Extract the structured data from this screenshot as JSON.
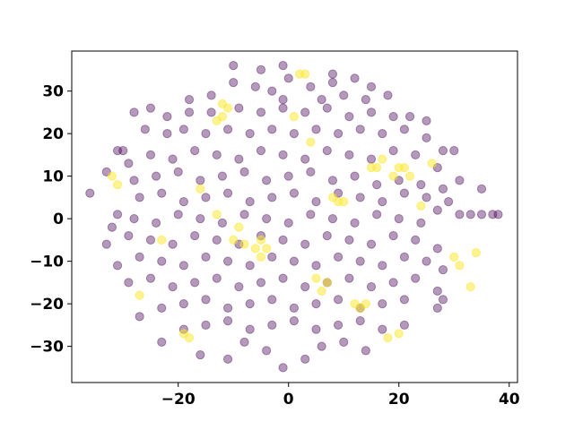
{
  "chart_data": {
    "type": "scatter",
    "title": "",
    "xlabel": "",
    "ylabel": "",
    "xlim": [
      -39.3,
      41.5
    ],
    "ylim": [
      -38.5,
      39.4
    ],
    "xticks": [
      -20,
      0,
      20,
      40
    ],
    "yticks": [
      -30,
      -20,
      -10,
      0,
      10,
      20,
      30
    ],
    "grid": false,
    "colors": {
      "class_0": "#440154",
      "class_1": "#fde725"
    },
    "series": [
      {
        "color": "#440154",
        "points": [
          [
            -10,
            32
          ],
          [
            -6,
            31
          ],
          [
            -3,
            30
          ],
          [
            0,
            33
          ],
          [
            4,
            31
          ],
          [
            8,
            32
          ],
          [
            12,
            33
          ],
          [
            15,
            31
          ],
          [
            18,
            29
          ],
          [
            -14,
            29
          ],
          [
            -18,
            28
          ],
          [
            -1,
            28
          ],
          [
            6,
            28
          ],
          [
            10,
            29
          ],
          [
            14,
            28
          ],
          [
            -1,
            36
          ],
          [
            -10,
            36
          ],
          [
            -5,
            35
          ],
          [
            8,
            34
          ],
          [
            -28,
            25
          ],
          [
            -25,
            26
          ],
          [
            -22,
            24
          ],
          [
            -18,
            25
          ],
          [
            -14,
            25
          ],
          [
            -9,
            26
          ],
          [
            -5,
            25
          ],
          [
            -1,
            26
          ],
          [
            3,
            25
          ],
          [
            7,
            26
          ],
          [
            11,
            24
          ],
          [
            15,
            25
          ],
          [
            19,
            24
          ],
          [
            22,
            24
          ],
          [
            25,
            23
          ],
          [
            -30,
            16
          ],
          [
            -26,
            21
          ],
          [
            -22,
            20
          ],
          [
            -19,
            21
          ],
          [
            -15,
            20
          ],
          [
            -11,
            21
          ],
          [
            -7,
            20
          ],
          [
            -3,
            21
          ],
          [
            1,
            20
          ],
          [
            5,
            21
          ],
          [
            9,
            20
          ],
          [
            13,
            21
          ],
          [
            17,
            20
          ],
          [
            21,
            21
          ],
          [
            25,
            19
          ],
          [
            28,
            16
          ],
          [
            -31,
            16
          ],
          [
            -29,
            13
          ],
          [
            -25,
            15
          ],
          [
            -21,
            14
          ],
          [
            -17,
            16
          ],
          [
            -13,
            15
          ],
          [
            -9,
            14
          ],
          [
            -5,
            16
          ],
          [
            -1,
            15
          ],
          [
            3,
            14
          ],
          [
            7,
            16
          ],
          [
            11,
            15
          ],
          [
            15,
            14
          ],
          [
            19,
            16
          ],
          [
            23,
            15
          ],
          [
            27,
            12
          ],
          [
            30,
            16
          ],
          [
            -33,
            11
          ],
          [
            -28,
            9
          ],
          [
            -24,
            10
          ],
          [
            -20,
            11
          ],
          [
            -16,
            9
          ],
          [
            -12,
            10
          ],
          [
            -8,
            11
          ],
          [
            -4,
            9
          ],
          [
            0,
            10
          ],
          [
            4,
            11
          ],
          [
            8,
            9
          ],
          [
            12,
            10
          ],
          [
            16,
            8
          ],
          [
            20,
            9
          ],
          [
            24,
            8
          ],
          [
            28,
            7
          ],
          [
            31,
            9
          ],
          [
            -36,
            6
          ],
          [
            -31,
            1
          ],
          [
            -27,
            5
          ],
          [
            -23,
            6
          ],
          [
            -19,
            4
          ],
          [
            -15,
            5
          ],
          [
            -11,
            6
          ],
          [
            -7,
            4
          ],
          [
            -3,
            5
          ],
          [
            1,
            6
          ],
          [
            5,
            4
          ],
          [
            9,
            6
          ],
          [
            13,
            5
          ],
          [
            17,
            4
          ],
          [
            21,
            6
          ],
          [
            25,
            5
          ],
          [
            29,
            4
          ],
          [
            35,
            7
          ],
          [
            -32,
            -2
          ],
          [
            -28,
            0
          ],
          [
            -24,
            -1
          ],
          [
            -20,
            1
          ],
          [
            -16,
            0
          ],
          [
            -12,
            -1
          ],
          [
            -8,
            1
          ],
          [
            -4,
            0
          ],
          [
            0,
            -1
          ],
          [
            4,
            1
          ],
          [
            8,
            0
          ],
          [
            12,
            -1
          ],
          [
            16,
            1
          ],
          [
            20,
            0
          ],
          [
            24,
            -1
          ],
          [
            27,
            2
          ],
          [
            31,
            1
          ],
          [
            33,
            1
          ],
          [
            35,
            1
          ],
          [
            37,
            1
          ],
          [
            38,
            1
          ],
          [
            -33,
            -6
          ],
          [
            -29,
            -4
          ],
          [
            -25,
            -5
          ],
          [
            -21,
            -6
          ],
          [
            -17,
            -4
          ],
          [
            -13,
            -5
          ],
          [
            -9,
            -6
          ],
          [
            -5,
            -4
          ],
          [
            -1,
            -5
          ],
          [
            3,
            -6
          ],
          [
            7,
            -4
          ],
          [
            11,
            -5
          ],
          [
            15,
            -6
          ],
          [
            19,
            -4
          ],
          [
            23,
            -5
          ],
          [
            27,
            -7
          ],
          [
            -31,
            -11
          ],
          [
            -27,
            -9
          ],
          [
            -23,
            -10
          ],
          [
            -19,
            -11
          ],
          [
            -15,
            -9
          ],
          [
            -11,
            -10
          ],
          [
            -7,
            -11
          ],
          [
            -3,
            -9
          ],
          [
            1,
            -10
          ],
          [
            5,
            -11
          ],
          [
            9,
            -9
          ],
          [
            13,
            -10
          ],
          [
            17,
            -11
          ],
          [
            21,
            -9
          ],
          [
            25,
            -10
          ],
          [
            28,
            -12
          ],
          [
            -29,
            -15
          ],
          [
            -25,
            -14
          ],
          [
            -21,
            -16
          ],
          [
            -17,
            -15
          ],
          [
            -13,
            -14
          ],
          [
            -9,
            -16
          ],
          [
            -5,
            -15
          ],
          [
            -1,
            -14
          ],
          [
            3,
            -16
          ],
          [
            7,
            -15
          ],
          [
            11,
            -14
          ],
          [
            15,
            -16
          ],
          [
            19,
            -15
          ],
          [
            23,
            -14
          ],
          [
            27,
            -17
          ],
          [
            -27,
            -23
          ],
          [
            -23,
            -21
          ],
          [
            -19,
            -20
          ],
          [
            -15,
            -19
          ],
          [
            -11,
            -21
          ],
          [
            -7,
            -20
          ],
          [
            -3,
            -19
          ],
          [
            1,
            -21
          ],
          [
            5,
            -20
          ],
          [
            9,
            -19
          ],
          [
            13,
            -21
          ],
          [
            17,
            -20
          ],
          [
            21,
            -19
          ],
          [
            28,
            -19
          ],
          [
            27,
            -21
          ],
          [
            -23,
            -29
          ],
          [
            -19,
            -26
          ],
          [
            -15,
            -25
          ],
          [
            -11,
            -24
          ],
          [
            -7,
            -26
          ],
          [
            -3,
            -25
          ],
          [
            1,
            -24
          ],
          [
            5,
            -26
          ],
          [
            9,
            -25
          ],
          [
            13,
            -24
          ],
          [
            17,
            -26
          ],
          [
            21,
            -25
          ],
          [
            -16,
            -32
          ],
          [
            -11,
            -33
          ],
          [
            -8,
            -29
          ],
          [
            -4,
            -31
          ],
          [
            -1,
            -35
          ],
          [
            3,
            -33
          ],
          [
            6,
            -30
          ],
          [
            10,
            -29
          ],
          [
            14,
            -31
          ]
        ]
      },
      {
        "color": "#fde725",
        "points": [
          [
            -32,
            10
          ],
          [
            -31,
            8
          ],
          [
            -27,
            -18
          ],
          [
            -23,
            -5
          ],
          [
            -19,
            -27
          ],
          [
            -18,
            -28
          ],
          [
            -16,
            7
          ],
          [
            -13,
            23
          ],
          [
            -12,
            24
          ],
          [
            -12,
            27
          ],
          [
            -11,
            26
          ],
          [
            -9,
            -2
          ],
          [
            -8,
            -6
          ],
          [
            -6,
            -7
          ],
          [
            -5,
            -9
          ],
          [
            -4,
            -7
          ],
          [
            2,
            34
          ],
          [
            3,
            34
          ],
          [
            1,
            24
          ],
          [
            4,
            18
          ],
          [
            5,
            -14
          ],
          [
            6,
            -17
          ],
          [
            7,
            -15
          ],
          [
            8,
            5
          ],
          [
            9,
            4
          ],
          [
            10,
            4
          ],
          [
            12,
            -20
          ],
          [
            13,
            -21
          ],
          [
            14,
            -20
          ],
          [
            15,
            12
          ],
          [
            16,
            12
          ],
          [
            17,
            14
          ],
          [
            19,
            10
          ],
          [
            20,
            12
          ],
          [
            21,
            12
          ],
          [
            22,
            10
          ],
          [
            18,
            -28
          ],
          [
            20,
            -27
          ],
          [
            26,
            13
          ],
          [
            30,
            -9
          ],
          [
            31,
            -11
          ],
          [
            34,
            -8
          ],
          [
            33,
            -16
          ],
          [
            24,
            3
          ],
          [
            -5,
            -5
          ],
          [
            -13,
            1
          ],
          [
            -10,
            -5
          ]
        ]
      }
    ]
  }
}
